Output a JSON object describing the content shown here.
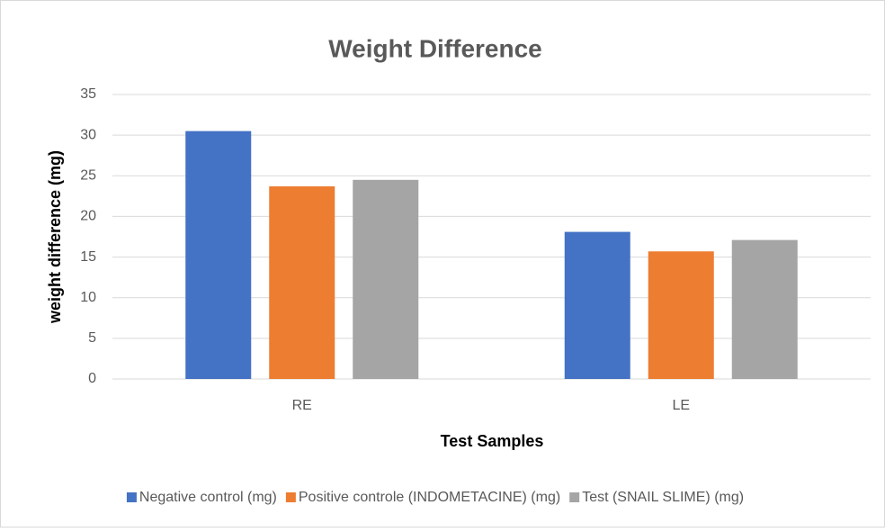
{
  "chart_data": {
    "type": "bar",
    "title": "Weight Difference",
    "x_label": "Test Samples",
    "y_label": "weight difference (mg)",
    "categories": [
      "RE",
      "LE"
    ],
    "series": [
      {
        "name": "Negative control (mg)",
        "color": "#4472c4",
        "values": [
          30.5,
          18.1
        ]
      },
      {
        "name": "Positive controle (INDOMETACINE) (mg)",
        "color": "#ed7d31",
        "values": [
          23.7,
          15.7
        ]
      },
      {
        "name": "Test (SNAIL SLIME) (mg)",
        "color": "#a5a5a5",
        "values": [
          24.5,
          17.1
        ]
      }
    ],
    "ylim": [
      0,
      35
    ],
    "yticks": [
      0,
      5,
      10,
      15,
      20,
      25,
      30,
      35
    ],
    "grid": true,
    "legend": "bottom"
  }
}
